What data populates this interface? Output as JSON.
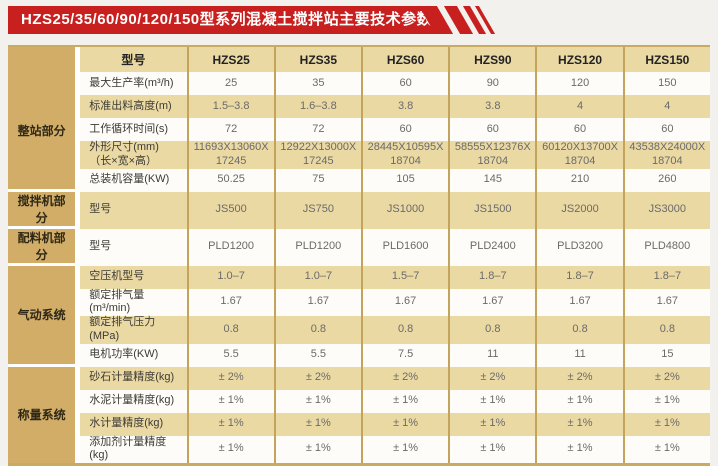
{
  "title": "HZS25/35/60/90/120/150型系列混凝土搅拌站主要技术参数",
  "colors": {
    "banner_red": "#c8201e",
    "group_cell_tan": "#d2ad68",
    "row_tan": "#ebd9a4",
    "row_white": "#fdfcf8",
    "divider_tan": "#c3a45c",
    "page_bg": "#f3f1ee"
  },
  "table": {
    "model_header_label": "型号",
    "model_columns": [
      "HZS25",
      "HZS35",
      "HZS60",
      "HZS90",
      "HZS120",
      "HZS150"
    ],
    "sections": [
      {
        "group": "整站部分",
        "rows": [
          {
            "label": "最大生产率(m³/h)",
            "values": [
              "25",
              "35",
              "60",
              "90",
              "120",
              "150"
            ]
          },
          {
            "label": "标准出料高度(m)",
            "values": [
              "1.5–3.8",
              "1.6–3.8",
              "3.8",
              "3.8",
              "4",
              "4"
            ]
          },
          {
            "label": "工作循环时间(s)",
            "values": [
              "72",
              "72",
              "60",
              "60",
              "60",
              "60"
            ]
          },
          {
            "label": "外形尺寸(mm)\n（长×宽×高）",
            "values": [
              "11693X13060X\n17245",
              "12922X13000X\n17245",
              "28445X10595X\n18704",
              "58555X12376X\n18704",
              "60120X13700X\n18704",
              "43538X24000X\n18704"
            ]
          },
          {
            "label": "总装机容量(KW)",
            "values": [
              "50.25",
              "75",
              "105",
              "145",
              "210",
              "260"
            ]
          }
        ]
      },
      {
        "group": "搅拌机部分",
        "rows": [
          {
            "label": "型号",
            "values": [
              "JS500",
              "JS750",
              "JS1000",
              "JS1500",
              "JS2000",
              "JS3000"
            ]
          }
        ]
      },
      {
        "group": "配料机部分",
        "rows": [
          {
            "label": "型号",
            "values": [
              "PLD1200",
              "PLD1200",
              "PLD1600",
              "PLD2400",
              "PLD3200",
              "PLD4800"
            ]
          }
        ]
      },
      {
        "group": "气动系统",
        "rows": [
          {
            "label": "空压机型号",
            "values": [
              "1.0–7",
              "1.0–7",
              "1.5–7",
              "1.8–7",
              "1.8–7",
              "1.8–7"
            ]
          },
          {
            "label": "额定排气量(m³/min)",
            "values": [
              "1.67",
              "1.67",
              "1.67",
              "1.67",
              "1.67",
              "1.67"
            ]
          },
          {
            "label": "额定排气压力(MPa)",
            "values": [
              "0.8",
              "0.8",
              "0.8",
              "0.8",
              "0.8",
              "0.8"
            ]
          },
          {
            "label": "电机功率(KW)",
            "values": [
              "5.5",
              "5.5",
              "7.5",
              "11",
              "11",
              "15"
            ]
          }
        ]
      },
      {
        "group": "称量系统",
        "rows": [
          {
            "label": "砂石计量精度(kg)",
            "values": [
              "± 2%",
              "± 2%",
              "± 2%",
              "± 2%",
              "± 2%",
              "± 2%"
            ]
          },
          {
            "label": "水泥计量精度(kg)",
            "values": [
              "± 1%",
              "± 1%",
              "± 1%",
              "± 1%",
              "± 1%",
              "± 1%"
            ]
          },
          {
            "label": "水计量精度(kg)",
            "values": [
              "± 1%",
              "± 1%",
              "± 1%",
              "± 1%",
              "± 1%",
              "± 1%"
            ]
          },
          {
            "label": "添加剂计量精度(kg)",
            "values": [
              "± 1%",
              "± 1%",
              "± 1%",
              "± 1%",
              "± 1%",
              "± 1%"
            ]
          }
        ]
      }
    ]
  }
}
